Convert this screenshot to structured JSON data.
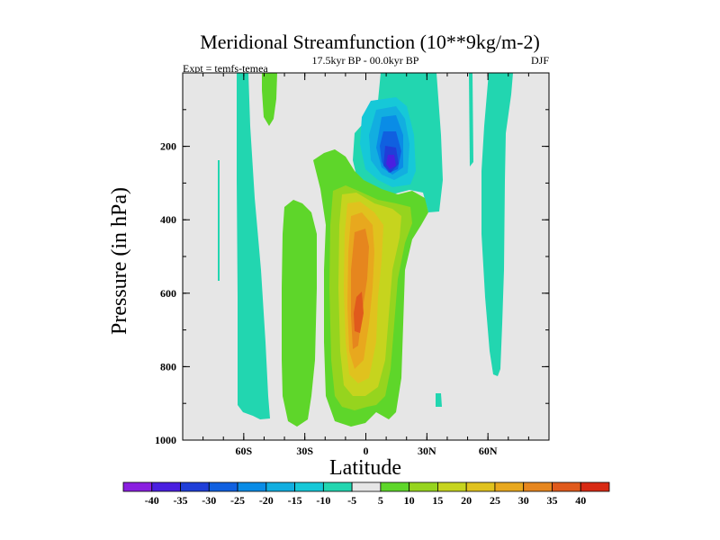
{
  "chart_data": {
    "type": "contour",
    "title": "Meridional Streamfunction (10**9kg/m-2)",
    "subtitle": "17.5kyr BP - 00.0kyr BP",
    "experiment": "Expt = temfs-temea",
    "season": "DJF",
    "xlabel": "Latitude",
    "ylabel": "Pressure (in hPa)",
    "xlim": [
      -90,
      90
    ],
    "ylim": [
      0,
      1000
    ],
    "x_ticks": [
      {
        "value": -60,
        "label": "60S"
      },
      {
        "value": -30,
        "label": "30S"
      },
      {
        "value": 0,
        "label": "0"
      },
      {
        "value": 30,
        "label": "30N"
      },
      {
        "value": 60,
        "label": "60N"
      }
    ],
    "y_ticks": [
      {
        "value": 200,
        "label": "200"
      },
      {
        "value": 400,
        "label": "400"
      },
      {
        "value": 600,
        "label": "600"
      },
      {
        "value": 800,
        "label": "800"
      },
      {
        "value": 1000,
        "label": "1000"
      }
    ],
    "colorbar": {
      "levels": [
        -40,
        -35,
        -30,
        -25,
        -20,
        -15,
        -10,
        -5,
        5,
        10,
        15,
        20,
        25,
        30,
        35,
        40
      ],
      "colors": [
        "#8a1fe0",
        "#4a1fe0",
        "#1f3ed8",
        "#1060e0",
        "#0a8ce6",
        "#12aee0",
        "#16c8d8",
        "#22d6b0",
        "#e6e6e6",
        "#5ed62a",
        "#96d41e",
        "#c6d41e",
        "#e0c21e",
        "#e8a81e",
        "#e6861e",
        "#e05a1c",
        "#d82a14"
      ]
    },
    "features": [
      {
        "name": "positive cell",
        "lat_range": [
          -18,
          18
        ],
        "p_range": [
          200,
          960
        ],
        "max": 35,
        "center": [
          -3,
          650
        ]
      },
      {
        "name": "negative cell",
        "lat_range": [
          -6,
          28
        ],
        "p_range": [
          0,
          320
        ],
        "min": -30,
        "center": [
          11,
          220
        ]
      }
    ]
  }
}
